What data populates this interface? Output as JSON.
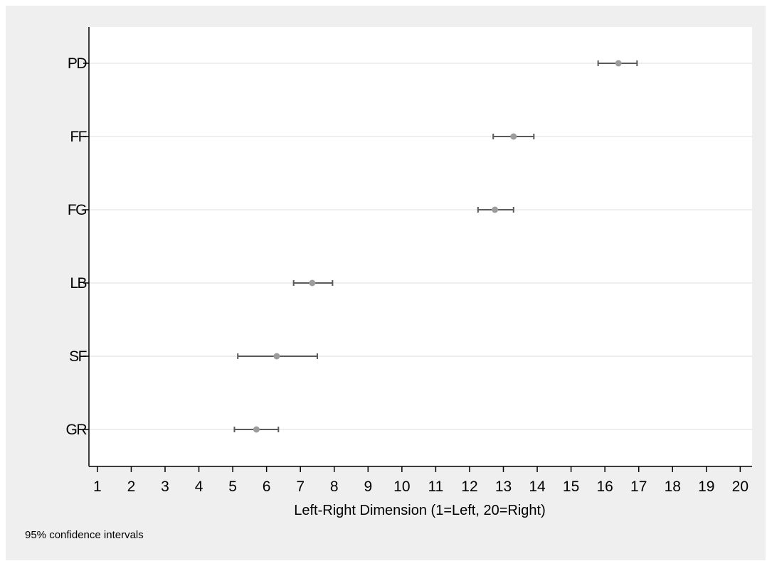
{
  "chart_data": {
    "type": "dot",
    "orientation": "horizontal",
    "xlabel": "Left-Right Dimension (1=Left, 20=Right)",
    "note": "95% confidence intervals",
    "xlim": [
      0.75,
      20.35
    ],
    "xticks": [
      1,
      2,
      3,
      4,
      5,
      6,
      7,
      8,
      9,
      10,
      11,
      12,
      13,
      14,
      15,
      16,
      17,
      18,
      19,
      20
    ],
    "grid": "horizontal",
    "categories": [
      "PD",
      "FF",
      "FG",
      "LB",
      "SF",
      "GR"
    ],
    "points": [
      {
        "label": "PD",
        "mean": 16.4,
        "ci_low": 15.8,
        "ci_high": 16.95
      },
      {
        "label": "FF",
        "mean": 13.3,
        "ci_low": 12.7,
        "ci_high": 13.9
      },
      {
        "label": "FG",
        "mean": 12.75,
        "ci_low": 12.25,
        "ci_high": 13.3
      },
      {
        "label": "LB",
        "mean": 7.35,
        "ci_low": 6.8,
        "ci_high": 7.95
      },
      {
        "label": "SF",
        "mean": 6.3,
        "ci_low": 5.15,
        "ci_high": 7.5
      },
      {
        "label": "GR",
        "mean": 5.7,
        "ci_low": 5.05,
        "ci_high": 6.35
      }
    ],
    "colors": {
      "outer_background": "#efefef",
      "plot_background": "#ffffff",
      "grid": "#e3e3e3",
      "axis": "#000000",
      "ci_line": "#5a5a5a",
      "marker": "#9c9c9c"
    }
  }
}
